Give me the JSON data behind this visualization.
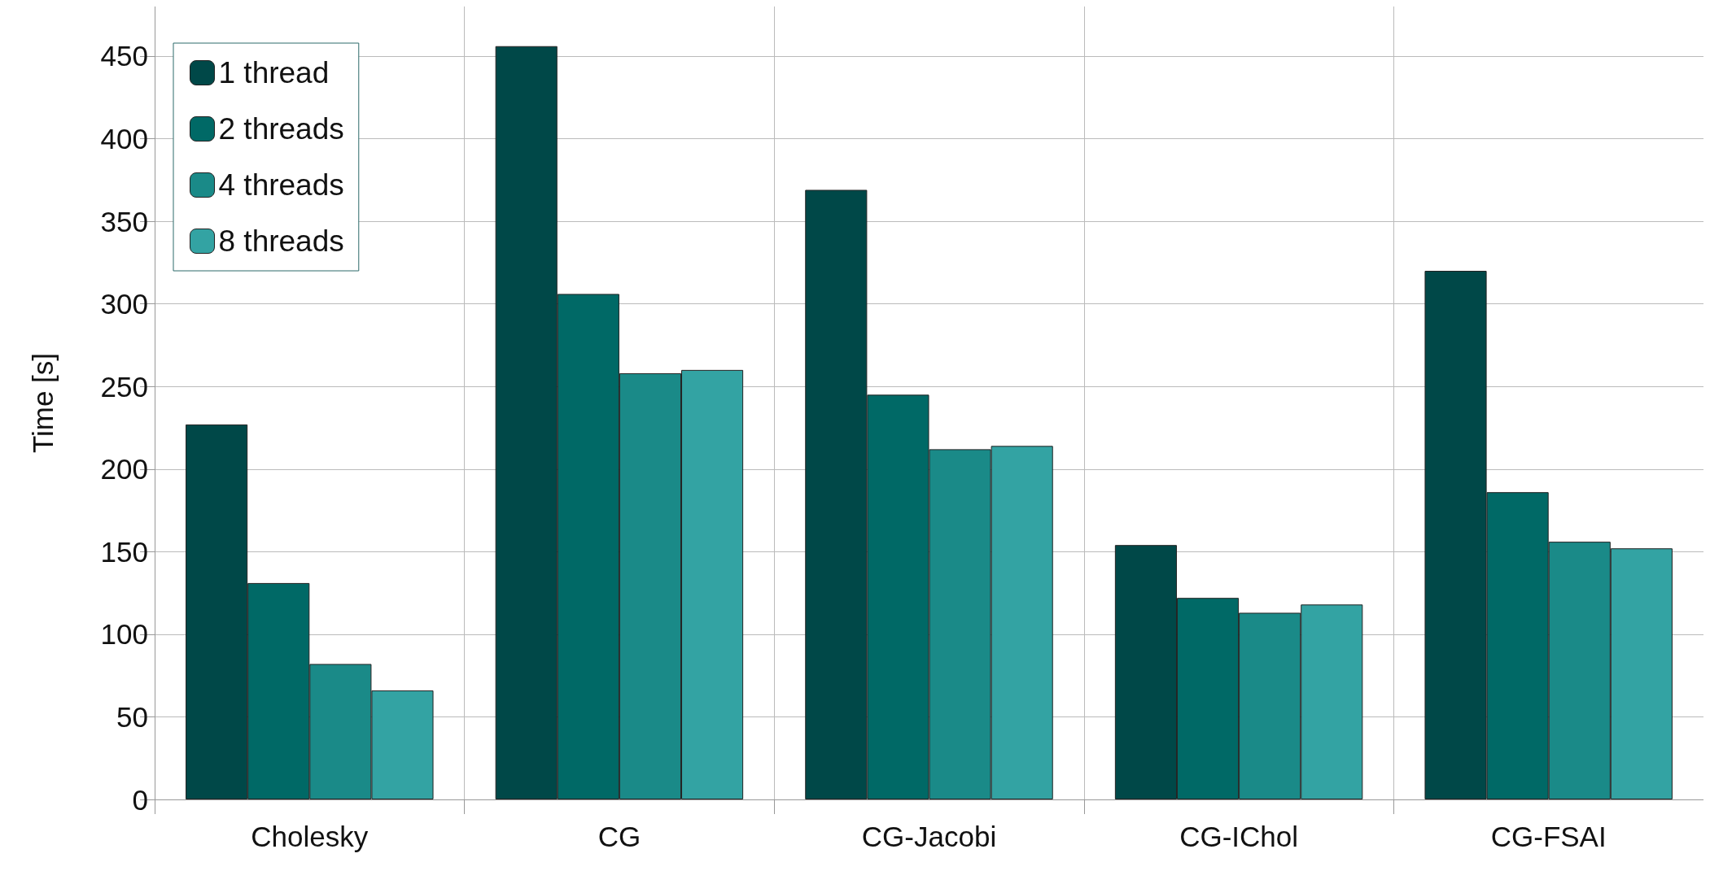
{
  "chart_data": {
    "type": "bar",
    "ylabel": "Time [s]",
    "categories": [
      "Cholesky",
      "CG",
      "CG-Jacobi",
      "CG-IChol",
      "CG-FSAI"
    ],
    "series": [
      {
        "name": "1 thread",
        "color": "#004848",
        "values": [
          227,
          456,
          369,
          154,
          320
        ]
      },
      {
        "name": "2 threads",
        "color": "#006966",
        "values": [
          131,
          306,
          245,
          122,
          186
        ]
      },
      {
        "name": "4 threads",
        "color": "#1a8a88",
        "values": [
          82,
          258,
          212,
          113,
          156
        ]
      },
      {
        "name": "8 threads",
        "color": "#33a3a3",
        "values": [
          66,
          260,
          214,
          118,
          152
        ]
      }
    ],
    "ylim": [
      0,
      480
    ],
    "yticks": [
      0,
      50,
      100,
      150,
      200,
      250,
      300,
      350,
      400,
      450
    ],
    "grid": true,
    "legend": "top left"
  }
}
